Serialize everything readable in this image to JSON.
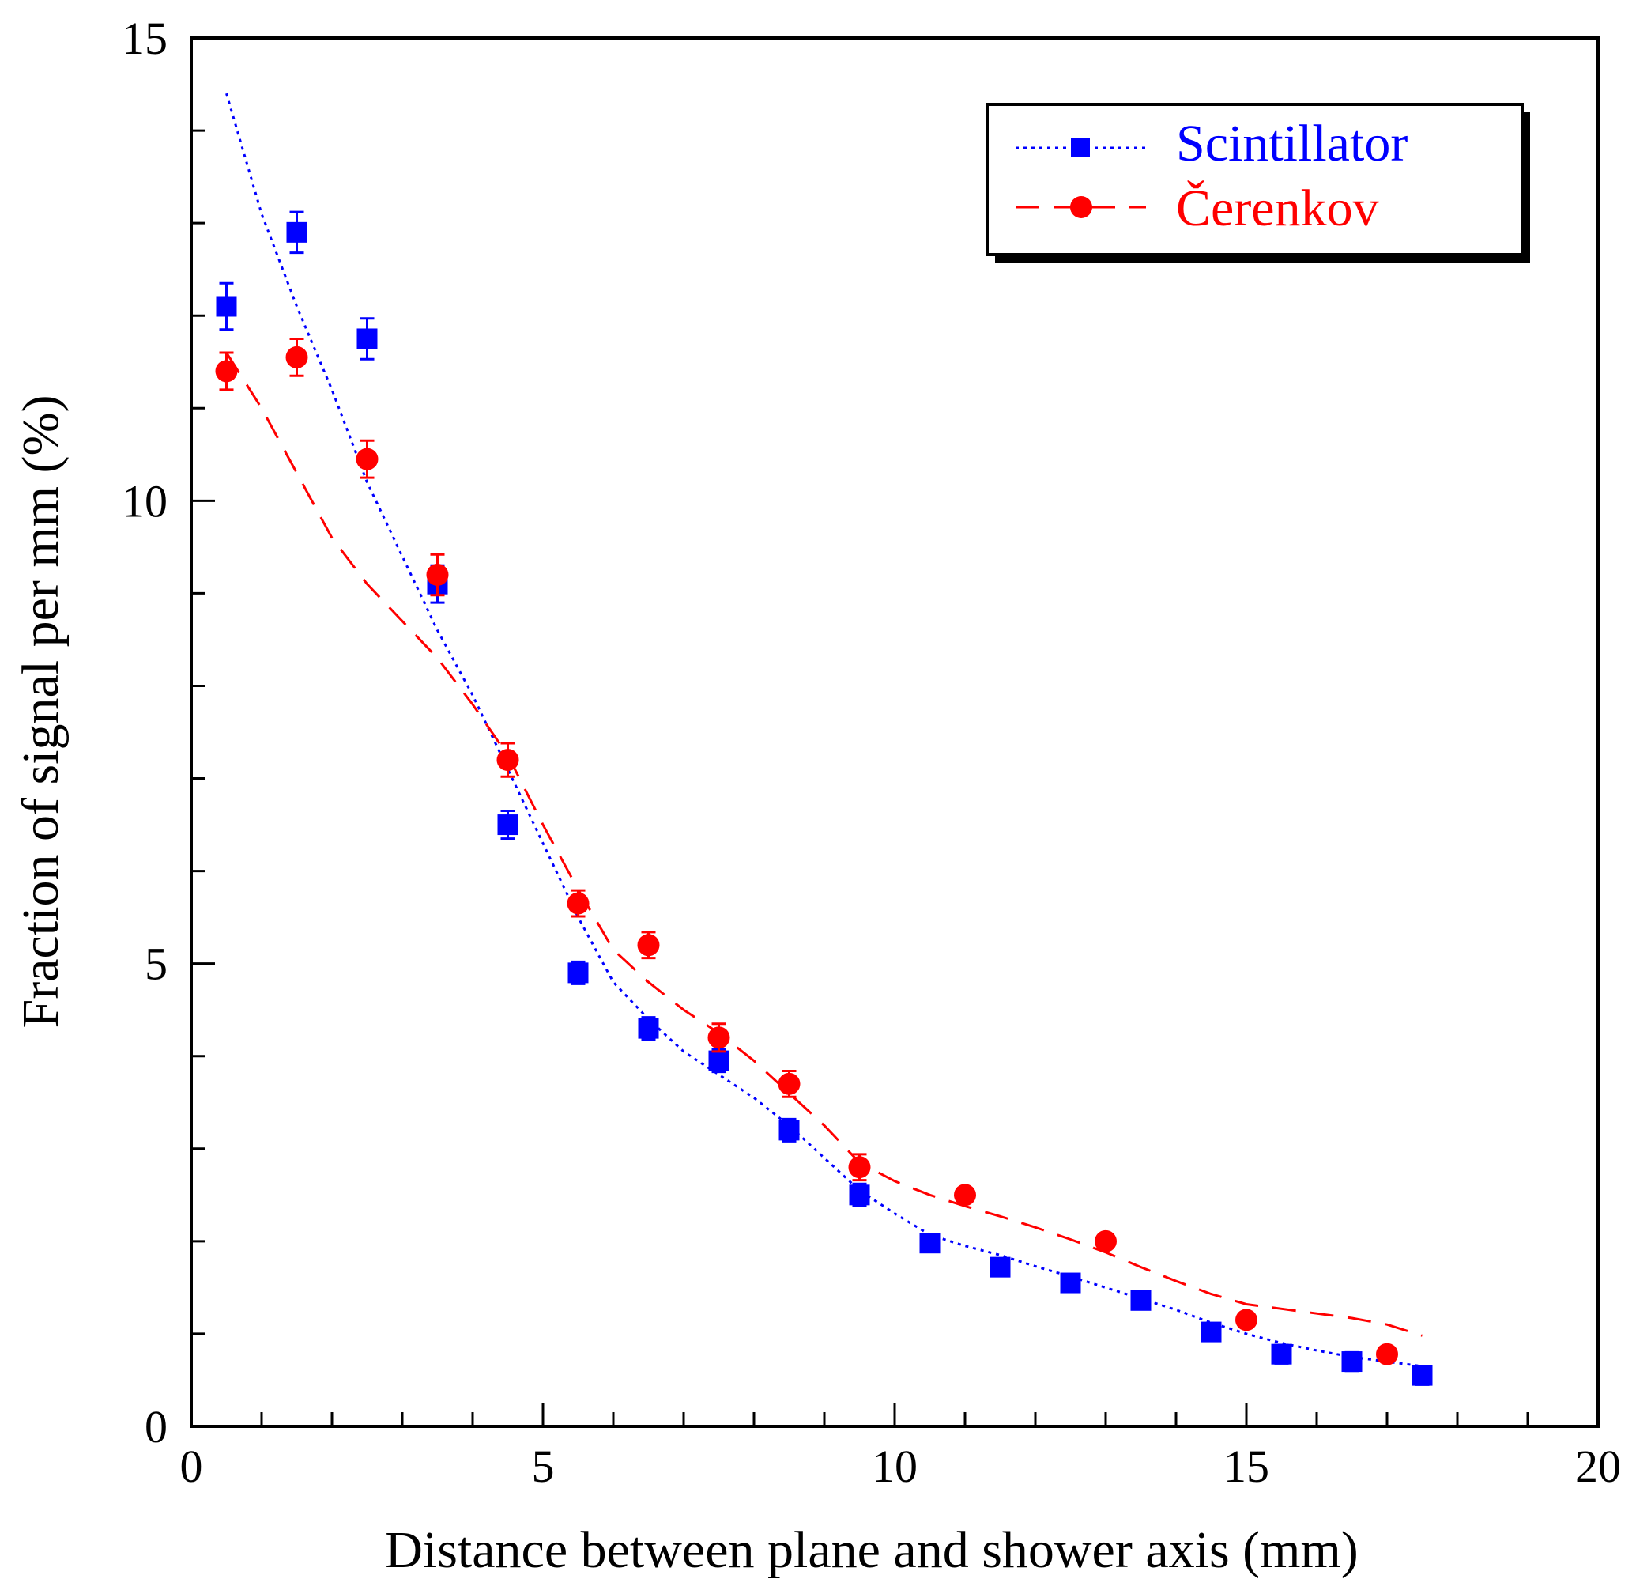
{
  "chart_data": {
    "type": "scatter",
    "xlabel": "Distance between plane and shower axis (mm)",
    "ylabel": "Fraction of signal per mm (%)",
    "xlim": [
      0,
      20
    ],
    "ylim": [
      0,
      15
    ],
    "x_ticks": [
      "0",
      "5",
      "10",
      "15",
      "20"
    ],
    "y_ticks": [
      "0",
      "5",
      "10",
      "15"
    ],
    "grid": false,
    "legend_position": "top-right",
    "series": [
      {
        "name": "Scintillator",
        "color": "#0000ff",
        "marker": "square",
        "line_style": "dotted",
        "x": [
          0.5,
          1.5,
          2.5,
          3.5,
          4.5,
          5.5,
          6.5,
          7.5,
          8.5,
          9.5,
          10.5,
          11.5,
          12.5,
          13.5,
          14.5,
          15.5,
          16.5,
          17.5
        ],
        "y": [
          12.1,
          12.9,
          11.75,
          9.1,
          6.5,
          4.9,
          4.3,
          3.95,
          3.2,
          2.5,
          1.98,
          1.72,
          1.55,
          1.36,
          1.02,
          0.78,
          0.7,
          0.55
        ],
        "err": [
          0.25,
          0.22,
          0.22,
          0.2,
          0.15,
          0.12,
          0.12,
          0.12,
          0.12,
          0.12,
          0.05,
          0.05,
          0.05,
          0.05,
          0.08,
          0.1,
          0.1,
          0.1
        ],
        "fit_x": [
          0.5,
          1.0,
          1.5,
          2.0,
          2.5,
          3.0,
          3.5,
          4.0,
          4.5,
          5.0,
          5.5,
          6.0,
          6.5,
          7.0,
          7.5,
          8.0,
          8.5,
          9.0,
          9.5,
          10.0,
          10.5,
          11.0,
          11.5,
          12.0,
          12.5,
          13.0,
          13.5,
          14.0,
          14.5,
          15.0,
          15.5,
          16.0,
          16.5,
          17.0,
          17.5
        ],
        "fit_y": [
          14.4,
          13.1,
          12.1,
          11.2,
          10.2,
          9.4,
          8.6,
          7.9,
          7.1,
          6.3,
          5.5,
          4.8,
          4.4,
          4.05,
          3.8,
          3.55,
          3.25,
          2.9,
          2.55,
          2.3,
          2.07,
          1.95,
          1.85,
          1.73,
          1.62,
          1.5,
          1.38,
          1.26,
          1.12,
          1.0,
          0.9,
          0.82,
          0.75,
          0.7,
          0.65
        ]
      },
      {
        "name": "Čerenkov",
        "color": "#ff0000",
        "marker": "circle",
        "line_style": "dashed",
        "x": [
          0.5,
          1.5,
          2.5,
          3.5,
          4.5,
          5.5,
          6.5,
          7.5,
          8.5,
          9.5,
          11.0,
          13.0,
          15.0,
          17.0
        ],
        "y": [
          11.4,
          11.55,
          10.45,
          9.2,
          7.2,
          5.65,
          5.2,
          4.2,
          3.7,
          2.8,
          2.5,
          2.0,
          1.15,
          0.78
        ],
        "err": [
          0.2,
          0.2,
          0.2,
          0.22,
          0.18,
          0.14,
          0.14,
          0.15,
          0.14,
          0.14,
          0.0,
          0.0,
          0.0,
          0.0
        ],
        "fit_x": [
          0.5,
          1.0,
          1.5,
          2.0,
          2.5,
          3.0,
          3.5,
          4.0,
          4.5,
          5.0,
          5.5,
          6.0,
          6.5,
          7.0,
          7.5,
          8.0,
          8.5,
          9.0,
          9.5,
          10.0,
          10.5,
          11.0,
          11.5,
          12.0,
          12.5,
          13.0,
          13.5,
          14.0,
          14.5,
          15.0,
          15.5,
          16.0,
          16.5,
          17.0,
          17.5
        ],
        "fit_y": [
          11.6,
          11.0,
          10.3,
          9.6,
          9.1,
          8.7,
          8.3,
          7.8,
          7.25,
          6.5,
          5.8,
          5.15,
          4.8,
          4.5,
          4.25,
          3.95,
          3.6,
          3.25,
          2.85,
          2.65,
          2.5,
          2.38,
          2.27,
          2.15,
          2.02,
          1.88,
          1.72,
          1.57,
          1.43,
          1.32,
          1.27,
          1.22,
          1.17,
          1.1,
          0.98
        ]
      }
    ]
  }
}
